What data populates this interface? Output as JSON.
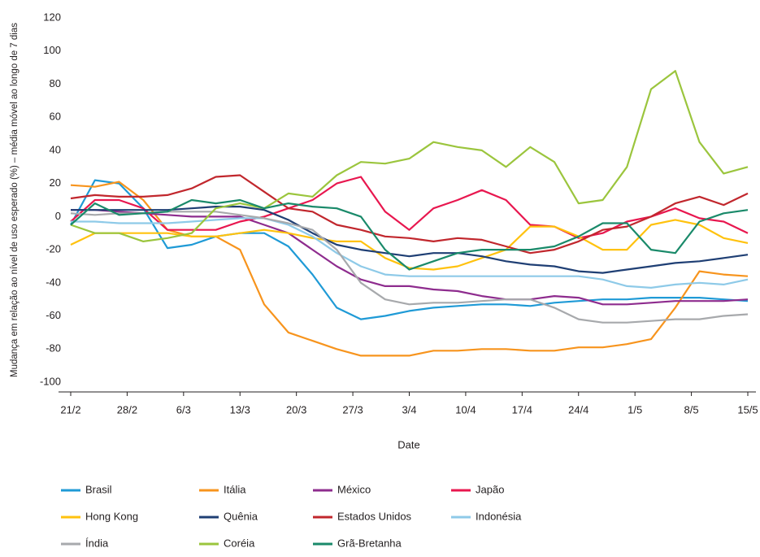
{
  "chart_data": {
    "type": "line",
    "ylabel": "Mudança em relação ao nível de uso esperado (%) – média móvel ao longo de 7 dias",
    "xlabel": "Date",
    "x": [
      0,
      3,
      6,
      9,
      12,
      15,
      18,
      21,
      24,
      27,
      30,
      33,
      36,
      39,
      42,
      45,
      48,
      51,
      54,
      57,
      60,
      63,
      66,
      69,
      72,
      75,
      78,
      81,
      84
    ],
    "xlim": [
      0,
      84
    ],
    "xticks": [
      {
        "value": 0,
        "label": "21/2"
      },
      {
        "value": 7,
        "label": "28/2"
      },
      {
        "value": 14,
        "label": "6/3"
      },
      {
        "value": 21,
        "label": "13/3"
      },
      {
        "value": 28,
        "label": "20/3"
      },
      {
        "value": 35,
        "label": "27/3"
      },
      {
        "value": 42,
        "label": "3/4"
      },
      {
        "value": 49,
        "label": "10/4"
      },
      {
        "value": 56,
        "label": "17/4"
      },
      {
        "value": 63,
        "label": "24/4"
      },
      {
        "value": 70,
        "label": "1/5"
      },
      {
        "value": 77,
        "label": "8/5"
      },
      {
        "value": 84,
        "label": "15/5"
      }
    ],
    "ylim": [
      -100,
      120
    ],
    "yticks": [
      -100,
      -80,
      -60,
      -40,
      -20,
      0,
      20,
      40,
      60,
      80,
      100,
      120
    ],
    "grid": false,
    "legend": "bottom",
    "series": [
      {
        "name": "Brasil",
        "color": "#1f9ad6",
        "values": [
          -5,
          22,
          20,
          5,
          -19,
          -17,
          -12,
          -10,
          -10,
          -18,
          -35,
          -55,
          -62,
          -60,
          -57,
          -55,
          -54,
          -53,
          -53,
          -54,
          -52,
          -51,
          -50,
          -50,
          -49,
          -49,
          -49,
          -50,
          -51
        ]
      },
      {
        "name": "Itália",
        "color": "#f7941d",
        "values": [
          19,
          18,
          21,
          10,
          -8,
          -12,
          -12,
          -20,
          -53,
          -70,
          -75,
          -80,
          -84,
          -84,
          -84,
          -81,
          -81,
          -80,
          -80,
          -81,
          -81,
          -79,
          -79,
          -77,
          -74,
          -55,
          -33,
          -35,
          -36
        ]
      },
      {
        "name": "México",
        "color": "#8e2c8e",
        "values": [
          4,
          4,
          3,
          2,
          1,
          0,
          0,
          0,
          -5,
          -10,
          -20,
          -30,
          -38,
          -42,
          -42,
          -44,
          -45,
          -48,
          -50,
          -50,
          -48,
          -49,
          -53,
          -53,
          -52,
          -51,
          -51,
          -51,
          -50
        ]
      },
      {
        "name": "Japão",
        "color": "#e8174f",
        "values": [
          -3,
          10,
          10,
          5,
          -8,
          -8,
          -8,
          -3,
          0,
          5,
          10,
          20,
          24,
          3,
          -8,
          5,
          10,
          16,
          10,
          -5,
          -6,
          -13,
          -10,
          -3,
          0,
          5,
          -1,
          -3,
          -10
        ]
      },
      {
        "name": "Hong Kong",
        "color": "#ffc20e",
        "values": [
          -17,
          -10,
          -10,
          -10,
          -10,
          -12,
          -12,
          -10,
          -8,
          -10,
          -13,
          -15,
          -15,
          -25,
          -31,
          -32,
          -30,
          -25,
          -20,
          -6,
          -6,
          -12,
          -20,
          -20,
          -5,
          -2,
          -5,
          -13,
          -16
        ]
      },
      {
        "name": "Quênia",
        "color": "#1f3f74",
        "values": [
          4,
          4,
          4,
          4,
          4,
          5,
          6,
          6,
          4,
          -2,
          -10,
          -17,
          -20,
          -22,
          -24,
          -22,
          -22,
          -24,
          -27,
          -29,
          -30,
          -33,
          -34,
          -32,
          -30,
          -28,
          -27,
          -25,
          -23
        ]
      },
      {
        "name": "Estados Unidos",
        "color": "#c1272d",
        "values": [
          11,
          13,
          12,
          12,
          13,
          17,
          24,
          25,
          15,
          5,
          3,
          -5,
          -8,
          -12,
          -13,
          -15,
          -13,
          -14,
          -18,
          -22,
          -20,
          -15,
          -8,
          -6,
          0,
          8,
          12,
          7,
          14
        ]
      },
      {
        "name": "Indonésia",
        "color": "#8ecae8",
        "values": [
          -3,
          -3,
          -4,
          -4,
          -4,
          -3,
          -2,
          -1,
          -1,
          -5,
          -12,
          -22,
          -30,
          -35,
          -36,
          -36,
          -36,
          -36,
          -36,
          -36,
          -36,
          -36,
          -38,
          -42,
          -43,
          -41,
          -40,
          -41,
          -38
        ]
      },
      {
        "name": "Índia",
        "color": "#a7a9ac",
        "values": [
          2,
          1,
          2,
          2,
          3,
          3,
          3,
          1,
          -1,
          -4,
          -8,
          -20,
          -40,
          -50,
          -53,
          -52,
          -52,
          -51,
          -50,
          -50,
          -55,
          -62,
          -64,
          -64,
          -63,
          -62,
          -62,
          -60,
          -59
        ]
      },
      {
        "name": "Coréia",
        "color": "#9bc53d",
        "values": [
          -5,
          -10,
          -10,
          -15,
          -13,
          -10,
          5,
          8,
          5,
          14,
          12,
          25,
          33,
          32,
          35,
          45,
          42,
          40,
          30,
          42,
          33,
          8,
          10,
          30,
          77,
          88,
          45,
          26,
          30
        ]
      },
      {
        "name": "Grã-Bretanha",
        "color": "#1a8a6a",
        "values": [
          -5,
          8,
          1,
          2,
          3,
          10,
          8,
          10,
          5,
          8,
          6,
          5,
          0,
          -20,
          -32,
          -27,
          -22,
          -20,
          -20,
          -20,
          -18,
          -12,
          -4,
          -4,
          -20,
          -22,
          -3,
          2,
          4
        ]
      }
    ]
  }
}
